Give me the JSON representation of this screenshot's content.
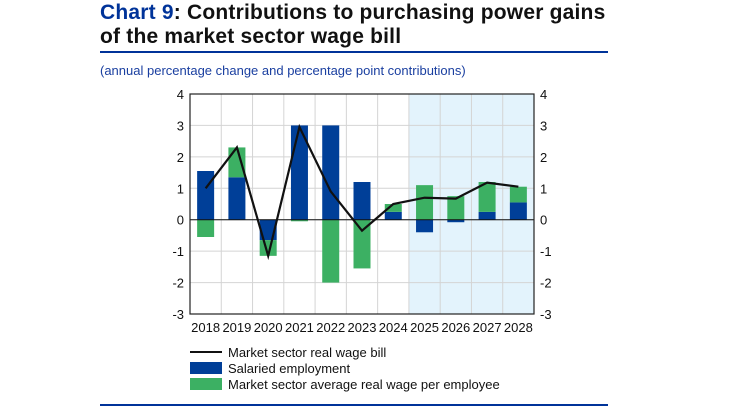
{
  "header": {
    "chart_number": "Chart 9",
    "title": ": Contributions to purchasing power gains of the market sector wage bill",
    "subtitle": "(annual percentage change and percentage point contributions)"
  },
  "colors": {
    "salaried": "#003f98",
    "wage": "#3cb063",
    "line": "#111111",
    "forecast_shade": "#e3f3fc",
    "rule": "#003399"
  },
  "chart_data": {
    "type": "bar",
    "stacked": true,
    "categories": [
      "2018",
      "2019",
      "2020",
      "2021",
      "2022",
      "2023",
      "2024",
      "2025",
      "2026",
      "2027",
      "2028"
    ],
    "series": [
      {
        "name": "Market sector real wage bill",
        "type": "line",
        "values": [
          1.0,
          2.3,
          -1.15,
          2.95,
          0.9,
          -0.35,
          0.5,
          0.7,
          0.67,
          1.18,
          1.05
        ]
      },
      {
        "name": "Salaried employment",
        "type": "bar",
        "values": [
          1.55,
          1.35,
          -0.65,
          3.0,
          3.0,
          1.2,
          0.25,
          -0.4,
          -0.08,
          0.25,
          0.55
        ]
      },
      {
        "name": "Market sector average real wage per employee",
        "type": "bar",
        "values": [
          -0.55,
          0.95,
          -0.5,
          -0.05,
          -2.0,
          -1.55,
          0.25,
          1.1,
          0.75,
          0.95,
          0.5
        ]
      }
    ],
    "ylim": [
      -3,
      4
    ],
    "yticks": [
      "4",
      "3",
      "2",
      "1",
      "0",
      "-1",
      "-2",
      "-3"
    ],
    "forecast_from": "2025",
    "grid": true,
    "legend_position": "bottom"
  }
}
